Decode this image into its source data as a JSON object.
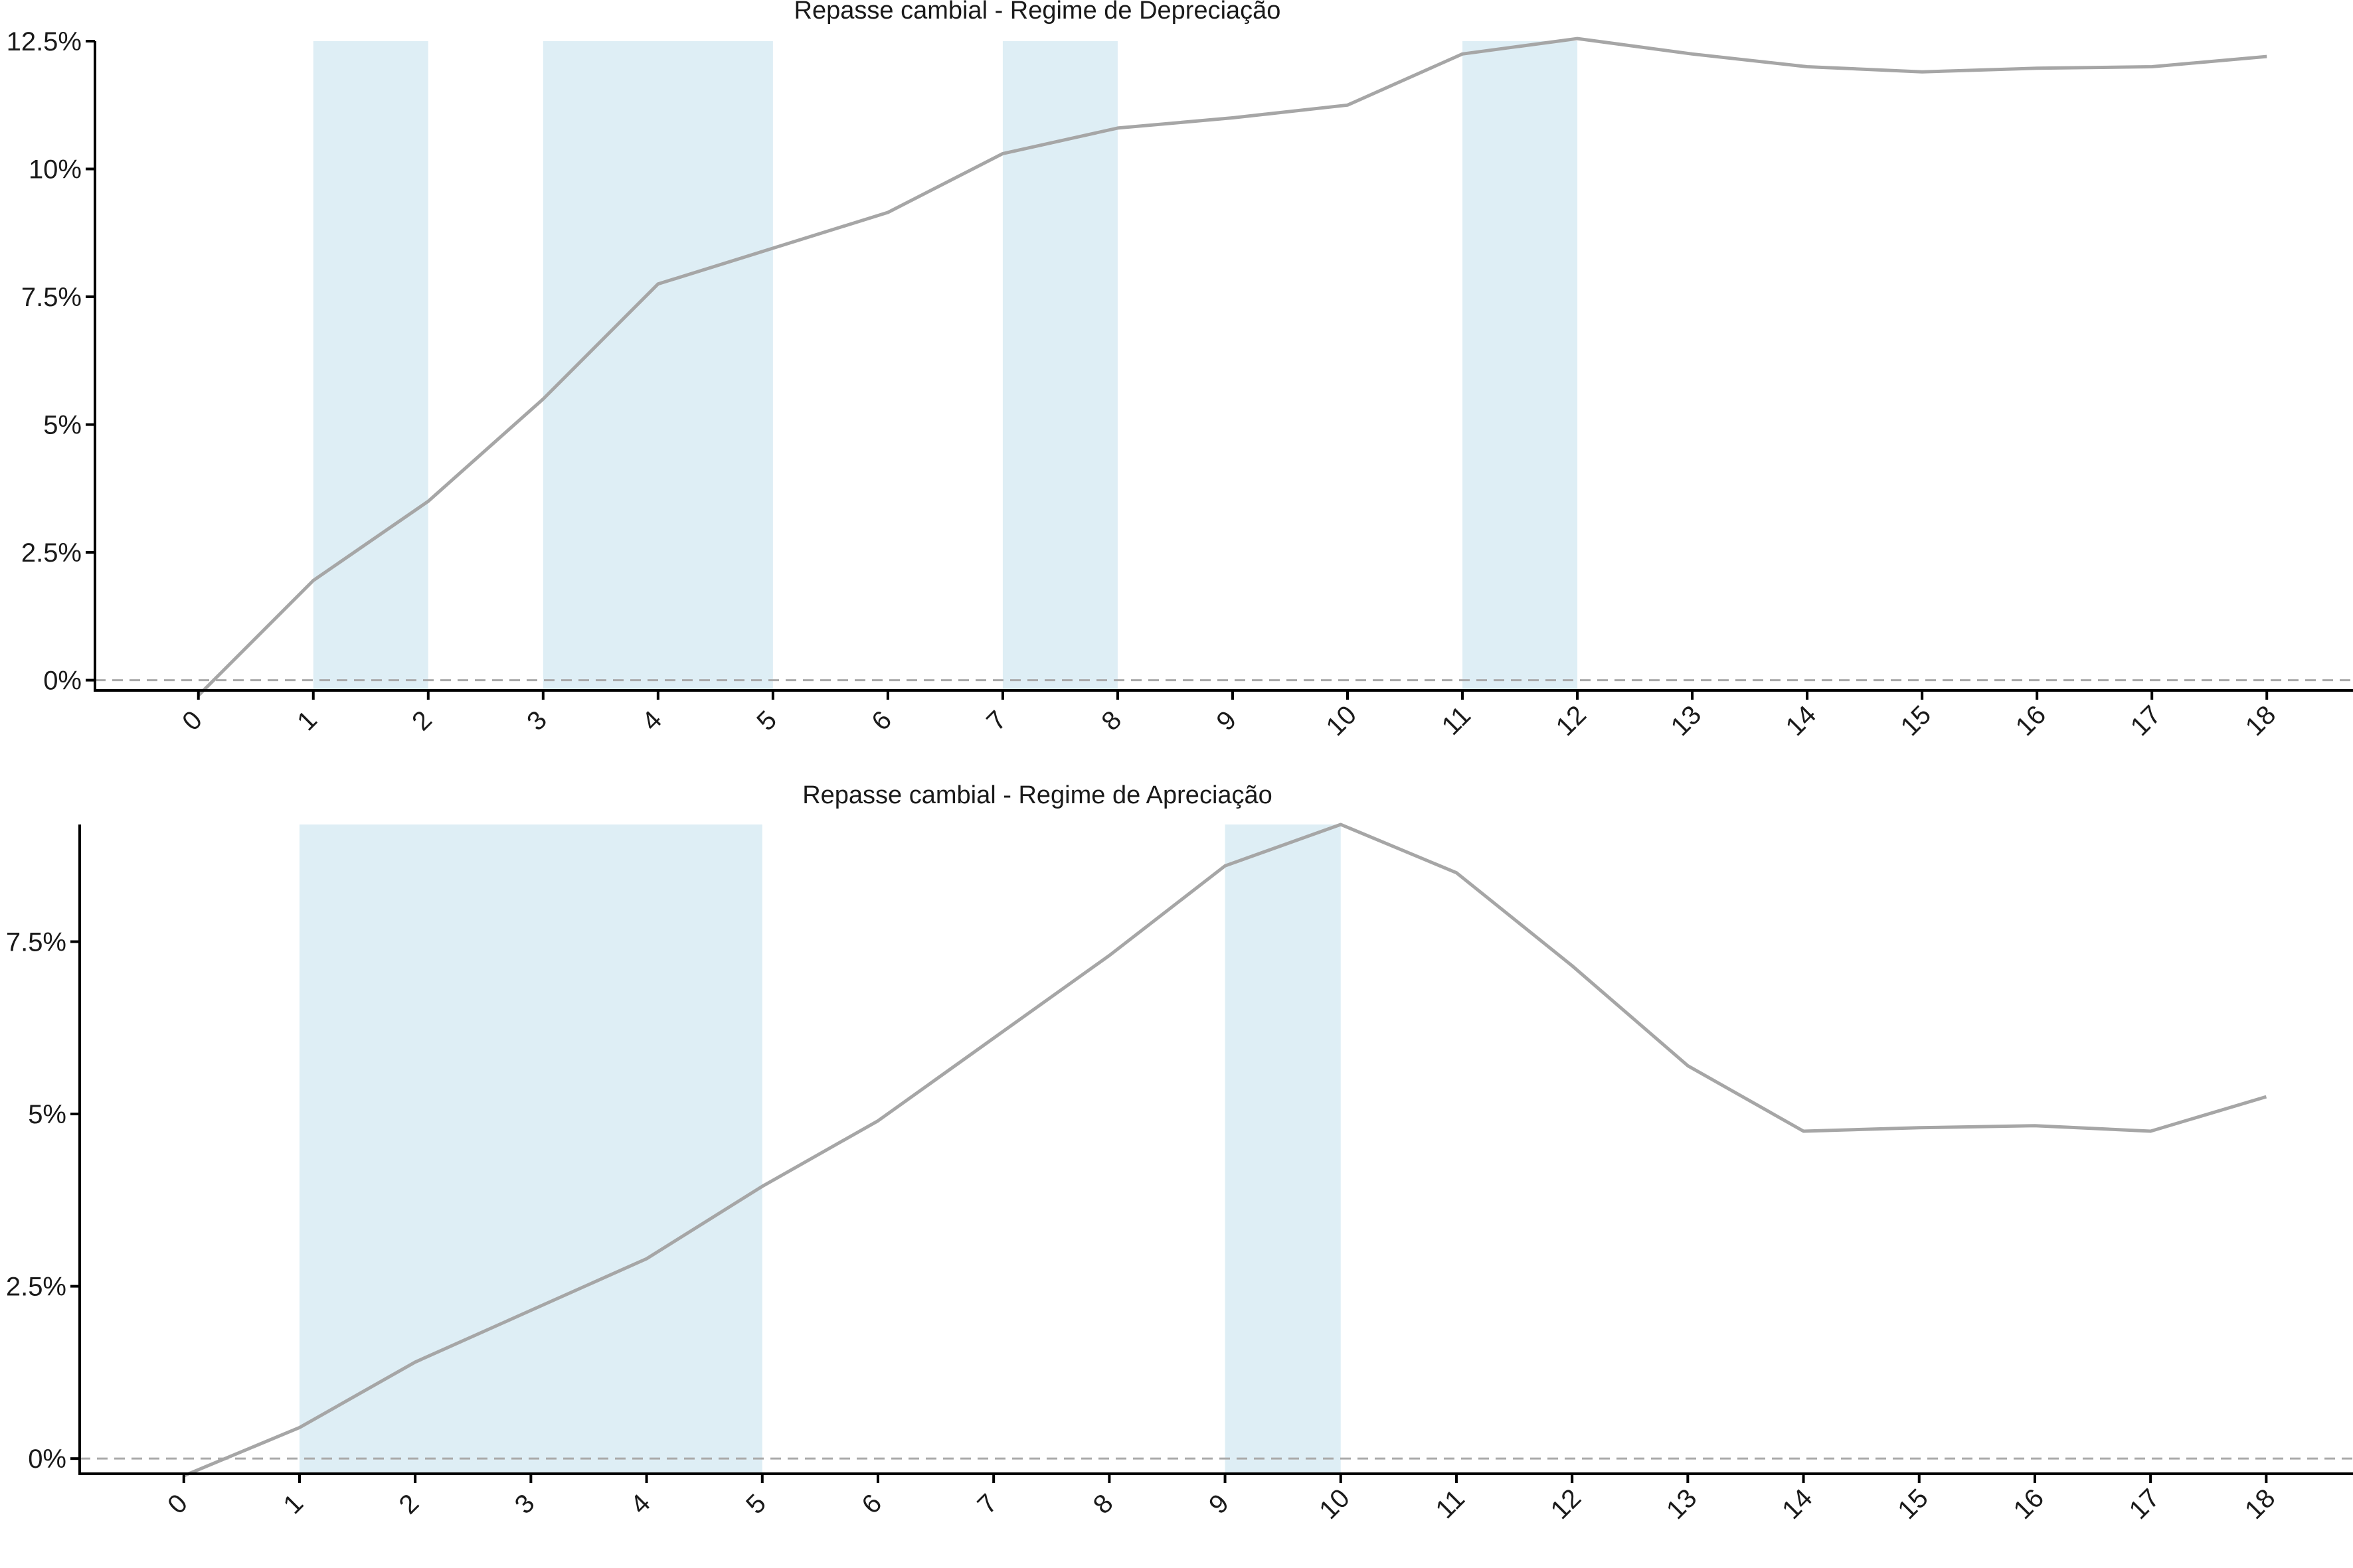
{
  "chart_data": [
    {
      "type": "line",
      "title": "Repasse cambial -  Regime de Depreciação",
      "x": [
        0,
        1,
        2,
        3,
        4,
        5,
        6,
        7,
        8,
        9,
        10,
        11,
        12,
        13,
        14,
        15,
        16,
        17,
        18
      ],
      "x_tick_labels": [
        "0",
        "1",
        "2",
        "3",
        "4",
        "5",
        "6",
        "7",
        "8",
        "9",
        "10",
        "11",
        "12",
        "13",
        "14",
        "15",
        "16",
        "17",
        "18"
      ],
      "series": [
        {
          "values": [
            -0.3,
            1.95,
            3.5,
            5.5,
            7.75,
            8.45,
            9.15,
            10.3,
            10.8,
            11.0,
            11.25,
            12.25,
            12.55,
            12.25,
            12.0,
            11.9,
            11.97,
            12.0,
            12.2
          ]
        }
      ],
      "y_ticks": [
        0,
        2.5,
        5,
        7.5,
        10,
        12.5
      ],
      "y_tick_labels": [
        "0%",
        "2.5%",
        "5%",
        "7.5%",
        "10%",
        "12.5%"
      ],
      "ylim": [
        -0.2,
        12.5
      ],
      "xlim": [
        -0.9,
        18.75
      ],
      "shaded_x_ranges": [
        [
          1,
          2
        ],
        [
          3,
          5
        ],
        [
          7,
          8
        ],
        [
          11,
          12
        ]
      ],
      "reference_line_y": 0,
      "grid": false,
      "legend": "none",
      "colors": {
        "line": "#a6a6a6",
        "shade": "#deeef5",
        "reference": "#aaaaaa",
        "axis": "#000000"
      }
    },
    {
      "type": "line",
      "title": "Repasse cambial -  Regime de Apreciação",
      "x": [
        0,
        1,
        2,
        3,
        4,
        5,
        6,
        7,
        8,
        9,
        10,
        11,
        12,
        13,
        14,
        15,
        16,
        17,
        18
      ],
      "x_tick_labels": [
        "0",
        "1",
        "2",
        "3",
        "4",
        "5",
        "6",
        "7",
        "8",
        "9",
        "10",
        "11",
        "12",
        "13",
        "14",
        "15",
        "16",
        "17",
        "18"
      ],
      "series": [
        {
          "values": [
            -0.25,
            0.45,
            1.4,
            2.15,
            2.9,
            3.95,
            4.9,
            6.1,
            7.3,
            8.6,
            9.2,
            8.5,
            7.15,
            5.7,
            4.75,
            4.8,
            4.83,
            4.75,
            5.25
          ]
        }
      ],
      "y_ticks": [
        0,
        2.5,
        5,
        7.5
      ],
      "y_tick_labels": [
        "0%",
        "2.5%",
        "5%",
        "7.5%"
      ],
      "ylim": [
        -0.22,
        9.2
      ],
      "xlim": [
        -0.9,
        18.75
      ],
      "shaded_x_ranges": [
        [
          1,
          5
        ],
        [
          9,
          10
        ]
      ],
      "reference_line_y": 0,
      "grid": false,
      "legend": "none",
      "colors": {
        "line": "#a6a6a6",
        "shade": "#deeef5",
        "reference": "#aaaaaa",
        "axis": "#000000"
      }
    }
  ]
}
